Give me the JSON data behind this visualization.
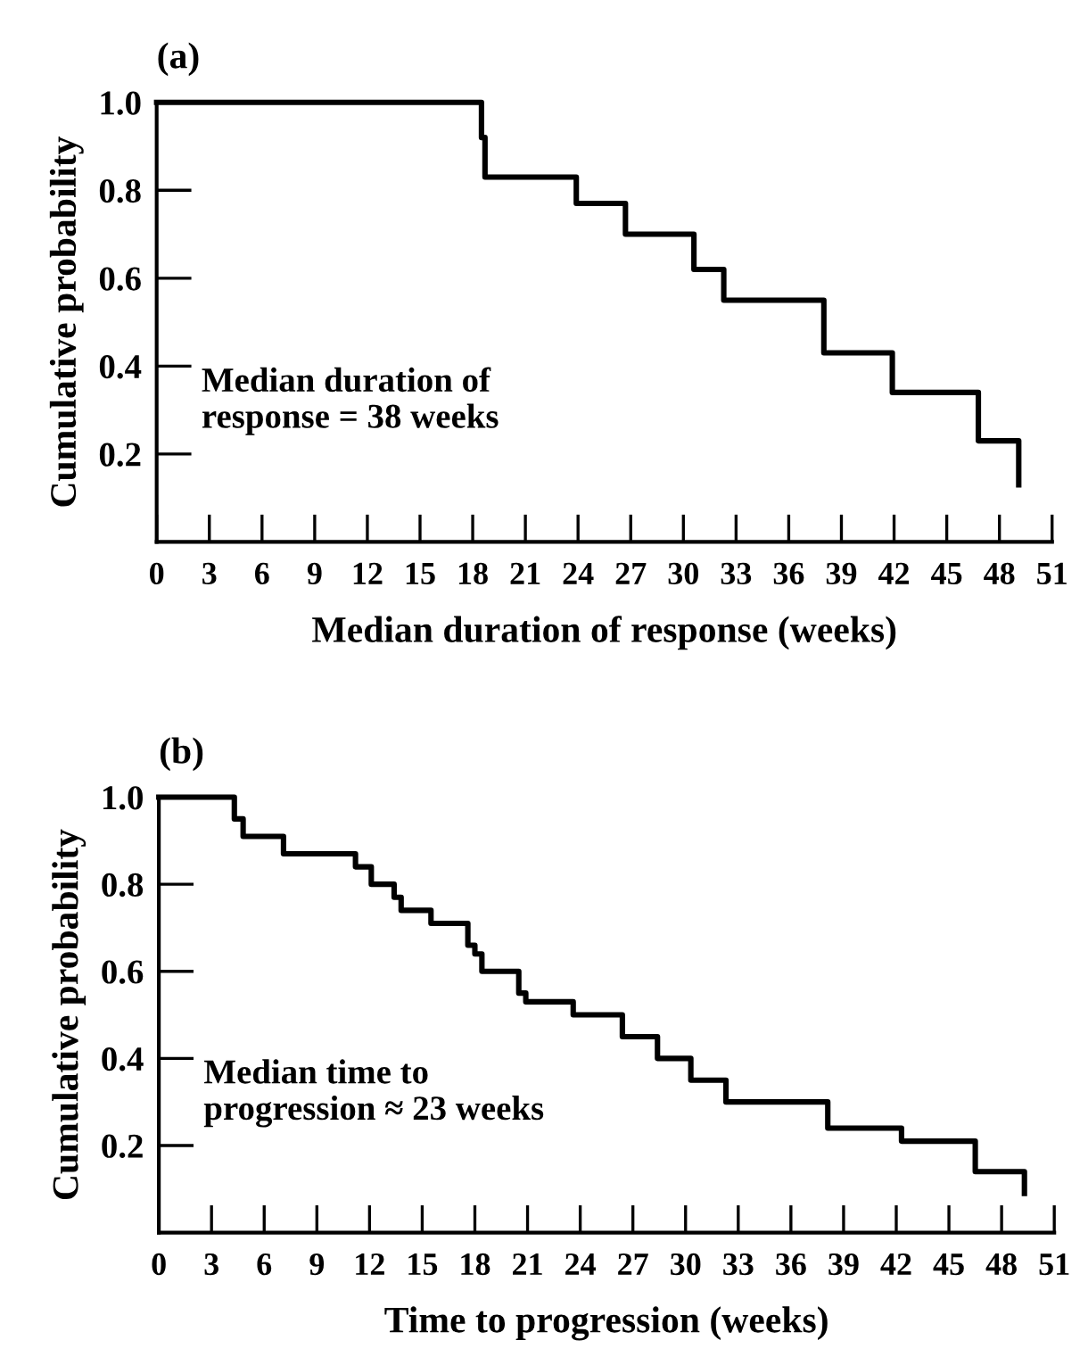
{
  "chart_data": [
    {
      "type": "step",
      "title": "(a)",
      "xlabel": "Median duration of response (weeks)",
      "ylabel": "Cumulative probability",
      "x": [
        0,
        18.5,
        18.7,
        23.9,
        26.7,
        30.6,
        32.3,
        38.0,
        41.9,
        46.8,
        49.1
      ],
      "values": [
        1.0,
        0.92,
        0.83,
        0.77,
        0.7,
        0.62,
        0.55,
        0.43,
        0.34,
        0.23,
        0.13
      ],
      "color": "#000000",
      "xlim": [
        0,
        51
      ],
      "xticks": [
        0,
        3,
        6,
        9,
        12,
        15,
        18,
        21,
        24,
        27,
        30,
        33,
        36,
        39,
        42,
        45,
        48,
        51
      ],
      "ylim": [
        0,
        1.0
      ],
      "yticks": [
        {
          "value": 0.2,
          "label": "0.2"
        },
        {
          "value": 0.4,
          "label": "0.4"
        },
        {
          "value": 0.6,
          "label": "0.6"
        },
        {
          "value": 0.8,
          "label": "0.8"
        },
        {
          "value": 1.0,
          "label": "1.0"
        }
      ],
      "annotations": [
        "Median duration of\nresponse = 38 weeks"
      ],
      "grid": false,
      "legend": false
    },
    {
      "type": "step",
      "title": "(b)",
      "xlabel": "Time to progression (weeks)",
      "ylabel": "Cumulative probability",
      "x": [
        0,
        4.3,
        4.8,
        7.1,
        11.2,
        12.1,
        13.4,
        13.8,
        15.5,
        17.6,
        18.0,
        18.4,
        20.5,
        20.9,
        23.6,
        26.4,
        28.4,
        30.3,
        32.3,
        38.1,
        42.3,
        46.5,
        49.3
      ],
      "values": [
        1.0,
        0.95,
        0.91,
        0.87,
        0.84,
        0.8,
        0.77,
        0.74,
        0.71,
        0.66,
        0.64,
        0.6,
        0.55,
        0.53,
        0.5,
        0.45,
        0.4,
        0.35,
        0.3,
        0.24,
        0.21,
        0.14,
        0.09
      ],
      "color": "#000000",
      "xlim": [
        0,
        51
      ],
      "xticks": [
        0,
        3,
        6,
        9,
        12,
        15,
        18,
        21,
        24,
        27,
        30,
        33,
        36,
        39,
        42,
        45,
        48,
        51
      ],
      "ylim": [
        0,
        1.0
      ],
      "yticks": [
        {
          "value": 0.2,
          "label": "0.2"
        },
        {
          "value": 0.4,
          "label": "0.4"
        },
        {
          "value": 0.6,
          "label": "0.6"
        },
        {
          "value": 0.8,
          "label": "0.8"
        },
        {
          "value": 1.0,
          "label": "1.0"
        }
      ],
      "annotations": [
        "Median time to\nprogression ≈ 23 weeks"
      ],
      "grid": false,
      "legend": false
    }
  ]
}
